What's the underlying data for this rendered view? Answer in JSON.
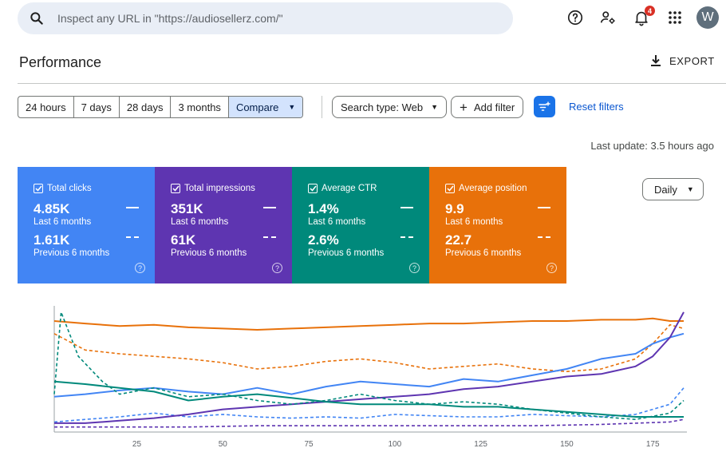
{
  "search": {
    "placeholder": "Inspect any URL in \"https://audiosellerz.com/\""
  },
  "header": {
    "notifications_count": "4",
    "avatar_letter": "W",
    "icons": [
      "help-icon",
      "manage-users-icon",
      "notifications-icon",
      "apps-grid-icon"
    ]
  },
  "page": {
    "title": "Performance",
    "export_label": "EXPORT"
  },
  "date_ranges": [
    {
      "label": "24 hours",
      "active": false
    },
    {
      "label": "7 days",
      "active": false
    },
    {
      "label": "28 days",
      "active": false
    },
    {
      "label": "3 months",
      "active": false
    },
    {
      "label": "Compare",
      "active": true
    }
  ],
  "filters": {
    "search_type": "Search type: Web",
    "add_filter": "Add filter",
    "reset": "Reset filters"
  },
  "last_update": "Last update: 3.5 hours ago",
  "metrics": [
    {
      "label": "Total clicks",
      "current": "4.85K",
      "current_period": "Last 6 months",
      "previous": "1.61K",
      "previous_period": "Previous 6 months",
      "color": "#4285f4"
    },
    {
      "label": "Total impressions",
      "current": "351K",
      "current_period": "Last 6 months",
      "previous": "61K",
      "previous_period": "Previous 6 months",
      "color": "#5e35b1"
    },
    {
      "label": "Average CTR",
      "current": "1.4%",
      "current_period": "Last 6 months",
      "previous": "2.6%",
      "previous_period": "Previous 6 months",
      "color": "#00897b"
    },
    {
      "label": "Average position",
      "current": "9.9",
      "current_period": "Last 6 months",
      "previous": "22.7",
      "previous_period": "Previous 6 months",
      "color": "#e8710a"
    }
  ],
  "granularity": "Daily",
  "chart_data": {
    "type": "line",
    "x_ticks": [
      25,
      50,
      75,
      100,
      125,
      150,
      175
    ],
    "xlim": [
      1,
      184
    ],
    "ylim": [
      0,
      100
    ],
    "grid": false,
    "series": [
      {
        "color": "#e8710a",
        "style": "solid",
        "values": [
          [
            1,
            88
          ],
          [
            10,
            86
          ],
          [
            20,
            84
          ],
          [
            30,
            85
          ],
          [
            40,
            83
          ],
          [
            50,
            82
          ],
          [
            60,
            81
          ],
          [
            70,
            82
          ],
          [
            80,
            83
          ],
          [
            90,
            84
          ],
          [
            100,
            85
          ],
          [
            110,
            86
          ],
          [
            120,
            86
          ],
          [
            130,
            87
          ],
          [
            140,
            88
          ],
          [
            150,
            88
          ],
          [
            160,
            89
          ],
          [
            170,
            89
          ],
          [
            175,
            90
          ],
          [
            180,
            88
          ],
          [
            184,
            88
          ]
        ]
      },
      {
        "color": "#e8710a",
        "style": "dashed",
        "values": [
          [
            1,
            78
          ],
          [
            10,
            65
          ],
          [
            20,
            62
          ],
          [
            30,
            60
          ],
          [
            40,
            58
          ],
          [
            50,
            55
          ],
          [
            60,
            50
          ],
          [
            70,
            52
          ],
          [
            80,
            56
          ],
          [
            90,
            58
          ],
          [
            100,
            55
          ],
          [
            110,
            50
          ],
          [
            120,
            52
          ],
          [
            130,
            54
          ],
          [
            140,
            50
          ],
          [
            150,
            48
          ],
          [
            160,
            50
          ],
          [
            170,
            58
          ],
          [
            175,
            70
          ],
          [
            180,
            85
          ],
          [
            184,
            82
          ]
        ]
      },
      {
        "color": "#4285f4",
        "style": "solid",
        "values": [
          [
            1,
            28
          ],
          [
            10,
            30
          ],
          [
            20,
            33
          ],
          [
            30,
            35
          ],
          [
            40,
            32
          ],
          [
            50,
            30
          ],
          [
            60,
            35
          ],
          [
            70,
            30
          ],
          [
            80,
            36
          ],
          [
            90,
            40
          ],
          [
            100,
            38
          ],
          [
            110,
            36
          ],
          [
            120,
            42
          ],
          [
            130,
            40
          ],
          [
            140,
            45
          ],
          [
            150,
            50
          ],
          [
            160,
            58
          ],
          [
            170,
            62
          ],
          [
            175,
            70
          ],
          [
            180,
            75
          ],
          [
            184,
            78
          ]
        ]
      },
      {
        "color": "#4285f4",
        "style": "dashed",
        "values": [
          [
            1,
            8
          ],
          [
            10,
            10
          ],
          [
            20,
            12
          ],
          [
            30,
            15
          ],
          [
            40,
            12
          ],
          [
            50,
            14
          ],
          [
            60,
            12
          ],
          [
            70,
            11
          ],
          [
            80,
            12
          ],
          [
            90,
            11
          ],
          [
            100,
            14
          ],
          [
            110,
            13
          ],
          [
            120,
            12
          ],
          [
            130,
            12
          ],
          [
            140,
            14
          ],
          [
            150,
            13
          ],
          [
            160,
            12
          ],
          [
            170,
            14
          ],
          [
            175,
            18
          ],
          [
            180,
            22
          ],
          [
            184,
            35
          ]
        ]
      },
      {
        "color": "#5e35b1",
        "style": "solid",
        "values": [
          [
            1,
            7
          ],
          [
            10,
            7
          ],
          [
            20,
            9
          ],
          [
            30,
            11
          ],
          [
            40,
            14
          ],
          [
            50,
            18
          ],
          [
            60,
            20
          ],
          [
            70,
            22
          ],
          [
            80,
            24
          ],
          [
            90,
            26
          ],
          [
            100,
            28
          ],
          [
            110,
            30
          ],
          [
            120,
            34
          ],
          [
            130,
            36
          ],
          [
            140,
            40
          ],
          [
            150,
            44
          ],
          [
            160,
            46
          ],
          [
            170,
            52
          ],
          [
            175,
            60
          ],
          [
            180,
            75
          ],
          [
            184,
            95
          ]
        ]
      },
      {
        "color": "#5e35b1",
        "style": "dashed",
        "values": [
          [
            1,
            4
          ],
          [
            20,
            4
          ],
          [
            40,
            4
          ],
          [
            60,
            5
          ],
          [
            80,
            5
          ],
          [
            100,
            5
          ],
          [
            120,
            5
          ],
          [
            140,
            5
          ],
          [
            160,
            6
          ],
          [
            180,
            8
          ],
          [
            184,
            10
          ]
        ]
      },
      {
        "color": "#00897b",
        "style": "solid",
        "values": [
          [
            1,
            40
          ],
          [
            10,
            38
          ],
          [
            20,
            35
          ],
          [
            30,
            32
          ],
          [
            40,
            25
          ],
          [
            50,
            28
          ],
          [
            60,
            30
          ],
          [
            70,
            27
          ],
          [
            80,
            24
          ],
          [
            90,
            22
          ],
          [
            100,
            22
          ],
          [
            110,
            22
          ],
          [
            120,
            20
          ],
          [
            130,
            20
          ],
          [
            140,
            18
          ],
          [
            150,
            16
          ],
          [
            160,
            14
          ],
          [
            170,
            12
          ],
          [
            175,
            12
          ],
          [
            180,
            12
          ],
          [
            184,
            12
          ]
        ]
      },
      {
        "color": "#00897b",
        "style": "dashed",
        "values": [
          [
            1,
            30
          ],
          [
            3,
            95
          ],
          [
            8,
            60
          ],
          [
            15,
            40
          ],
          [
            20,
            30
          ],
          [
            30,
            35
          ],
          [
            40,
            28
          ],
          [
            50,
            30
          ],
          [
            60,
            25
          ],
          [
            70,
            22
          ],
          [
            80,
            25
          ],
          [
            90,
            30
          ],
          [
            100,
            25
          ],
          [
            110,
            22
          ],
          [
            120,
            24
          ],
          [
            130,
            22
          ],
          [
            140,
            18
          ],
          [
            150,
            15
          ],
          [
            160,
            12
          ],
          [
            170,
            10
          ],
          [
            180,
            15
          ],
          [
            184,
            25
          ]
        ]
      }
    ]
  }
}
